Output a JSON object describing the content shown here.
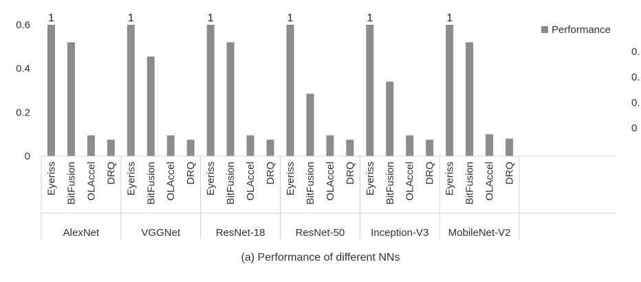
{
  "caption": "(a) Performance of different NNs",
  "chart_data": {
    "type": "bar",
    "ylim": [
      0,
      0.6
    ],
    "yticks": [
      {
        "value": 0,
        "label": "0"
      },
      {
        "value": 0.2,
        "label": "0.2"
      },
      {
        "value": 0.4,
        "label": "0.4"
      },
      {
        "value": 0.6,
        "label": "0.6"
      }
    ],
    "grid": false,
    "legend": {
      "position": "top-right",
      "entries": [
        "Performance"
      ]
    },
    "bar_color": "#8c8c8c",
    "right_axis_fragments": [
      "0.",
      "0.",
      "0.",
      "0"
    ],
    "series": [
      {
        "name": "Performance",
        "groups": [
          {
            "group": "AlexNet",
            "bars": [
              {
                "label": "Eyeriss",
                "value": 0.6,
                "annotation": "1"
              },
              {
                "label": "BitFusion",
                "value": 0.52
              },
              {
                "label": "OLAccel",
                "value": 0.095
              },
              {
                "label": "DRQ",
                "value": 0.075
              }
            ]
          },
          {
            "group": "VGGNet",
            "bars": [
              {
                "label": "Eyeriss",
                "value": 0.6,
                "annotation": "1"
              },
              {
                "label": "BitFusion",
                "value": 0.455
              },
              {
                "label": "OLAccel",
                "value": 0.095
              },
              {
                "label": "DRQ",
                "value": 0.075
              }
            ]
          },
          {
            "group": "ResNet-18",
            "bars": [
              {
                "label": "Eyeriss",
                "value": 0.6,
                "annotation": "1"
              },
              {
                "label": "BitFusion",
                "value": 0.52
              },
              {
                "label": "OLAccel",
                "value": 0.095
              },
              {
                "label": "DRQ",
                "value": 0.075
              }
            ]
          },
          {
            "group": "ResNet-50",
            "bars": [
              {
                "label": "Eyeriss",
                "value": 0.6,
                "annotation": "1"
              },
              {
                "label": "BitFusion",
                "value": 0.285
              },
              {
                "label": "OLAccel",
                "value": 0.095
              },
              {
                "label": "DRQ",
                "value": 0.075
              }
            ]
          },
          {
            "group": "Inception-V3",
            "bars": [
              {
                "label": "Eyeriss",
                "value": 0.6,
                "annotation": "1"
              },
              {
                "label": "BitFusion",
                "value": 0.34
              },
              {
                "label": "OLAccel",
                "value": 0.095
              },
              {
                "label": "DRQ",
                "value": 0.075
              }
            ]
          },
          {
            "group": "MobileNet-V2",
            "bars": [
              {
                "label": "Eyeriss",
                "value": 0.6,
                "annotation": "1"
              },
              {
                "label": "BitFusion",
                "value": 0.52
              },
              {
                "label": "OLAccel",
                "value": 0.1
              },
              {
                "label": "DRQ",
                "value": 0.08
              }
            ]
          }
        ]
      }
    ]
  }
}
